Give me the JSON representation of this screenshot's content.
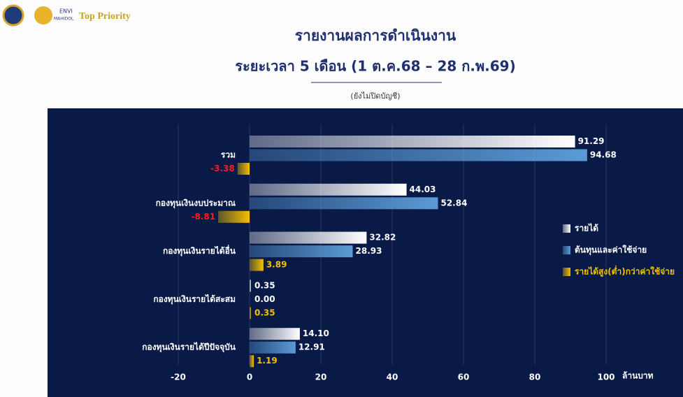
{
  "header": {
    "logo_top": "ENVI",
    "logo_bottom": "MAHIDOL",
    "brand": "Top Priority"
  },
  "chart_data": {
    "type": "barh",
    "title": "รายงานผลการดำเนินงาน",
    "subtitle": "ระยะเวลา 5 เดือน (1 ต.ค.68 – 28 ก.พ.69)",
    "note": "(ยังไม่ปิดบัญชี)",
    "x_label": "ล้านบาท",
    "categories": [
      "รวม",
      "กองทุนเงินงบประมาณ",
      "กองทุนเงินรายได้อื่น",
      "กองทุนเงินรายได้สะสม",
      "กองทุนเงินรายได้ปีปัจจุบัน"
    ],
    "series": [
      {
        "name": "รายได้",
        "color": "#ffffff",
        "values": [
          91.29,
          44.03,
          32.82,
          0.35,
          14.1
        ],
        "value_labels": [
          "91.29",
          "44.03",
          "32.82",
          "0.35",
          "14.10"
        ]
      },
      {
        "name": "ต้นทุนและค่าใช้จ่าย",
        "color": "#5b9bd5",
        "values": [
          94.68,
          52.84,
          28.93,
          0,
          12.91
        ],
        "value_labels": [
          "94.68",
          "52.84",
          "28.93",
          "0.00",
          "12.91"
        ]
      },
      {
        "name": "รายได้สูง(ต่ำ)กว่าค่าใช้จ่าย",
        "color": "#f5c000",
        "values": [
          -3.38,
          -8.81,
          3.89,
          0.35,
          1.19
        ],
        "value_labels": [
          "-3.38",
          "-8.81",
          "3.89",
          "0.35",
          "1.19"
        ]
      }
    ],
    "negative_color": "#ff1a1a",
    "xlim": [
      -20,
      100
    ],
    "xticks": [
      -20,
      0,
      20,
      40,
      60,
      80,
      100
    ],
    "grid": true,
    "legend": "right"
  }
}
